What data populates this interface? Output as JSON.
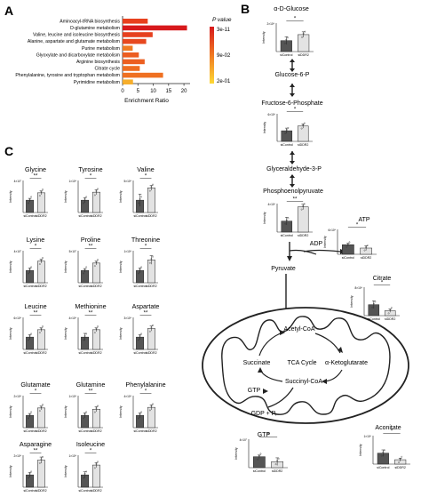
{
  "panels": {
    "A": "A",
    "B": "B",
    "C": "C"
  },
  "panel_a": {
    "legend_title": "P value",
    "legend_ticks": [
      "3e-11",
      "9e-02",
      "2e-01"
    ],
    "xlabel": "Enrichment Ratio",
    "x_ticks": [
      "0",
      "5",
      "10",
      "15",
      "20"
    ]
  },
  "pathway_nodes": {
    "glucose": "α-D-Glucose",
    "g6p": "Glucose-6-P",
    "f6p": "Fructose-6-Phosphate",
    "g3p": "Glyceraldehyde-3-P",
    "pep": "Phosphoenolpyruvate",
    "pyruvate": "Pyruvate",
    "atp": "ATP",
    "adp": "ADP",
    "acetyl": "Acetyl-CoA",
    "tca": "TCA Cycle",
    "akg": "α-Ketoglutarate",
    "succinate": "Succinate",
    "succcoa": "Succinyl-CoA",
    "gtp_in": "GTP",
    "gdp": "GDP + Pᵢ",
    "citrate": "Citrate",
    "gtp": "GTP",
    "aconitate": "Aconitate"
  },
  "mini_common": {
    "ylabel": "Intensity",
    "group1": "siControl",
    "group2": "siDDR2"
  },
  "chart_data": [
    {
      "type": "bar",
      "orientation": "horizontal",
      "xlabel": "Enrichment Ratio",
      "xlim": [
        0,
        22
      ],
      "categories": [
        "Aminoacyl-tRNA biosynthesis",
        "D-glutamine metabolism",
        "Valine, leucine and isoleucine biosynthesis",
        "Alanine, aspartate and glutamate metabolism",
        "Purine metabolism",
        "Glyoxylate and dicarboxylate metabolism",
        "Arginine biosynthesis",
        "Citrate cycle",
        "Phenylalanine, tyrosine and tryptophan metabolism",
        "Pyrimidine metabolism"
      ],
      "values": [
        8.2,
        21.0,
        9.8,
        7.7,
        3.3,
        5.3,
        7.2,
        5.6,
        13.2,
        3.4
      ],
      "colors": [
        "#e8401e",
        "#d7191c",
        "#e6401f",
        "#e7481f",
        "#f07a22",
        "#ec5d20",
        "#ec5f20",
        "#ee6d21",
        "#ef7021",
        "#f6ae2c"
      ]
    },
    {
      "type": "bar",
      "panel": "B",
      "title": "",
      "charts": [
        {
          "key": "glucose",
          "values": [
            1.0,
            1.55
          ],
          "errors": [
            0.35,
            0.25
          ],
          "sig": "*",
          "ytick": "2×10⁸"
        },
        {
          "key": "f6p",
          "values": [
            1.0,
            1.45
          ],
          "errors": [
            0.25,
            0.2
          ],
          "sig": "*",
          "ytick": "6×10⁶"
        },
        {
          "key": "pep",
          "values": [
            1.0,
            2.3
          ],
          "errors": [
            0.35,
            0.25
          ],
          "sig": "**",
          "ytick": "4×10⁶"
        },
        {
          "key": "atp",
          "values": [
            1.0,
            0.65
          ],
          "errors": [
            0.15,
            0.25
          ],
          "sig": "*",
          "ytick": "6×10⁸"
        },
        {
          "key": "citrate",
          "values": [
            1.0,
            0.45
          ],
          "errors": [
            0.35,
            0.15
          ],
          "sig": "*",
          "ytick": "8×10⁶"
        },
        {
          "key": "gtp",
          "values": [
            1.0,
            0.55
          ],
          "errors": [
            0.15,
            0.35
          ],
          "sig": "*",
          "ytick": "4×10⁷"
        },
        {
          "key": "aconitate",
          "values": [
            1.0,
            0.4
          ],
          "errors": [
            0.3,
            0.15
          ],
          "sig": "*",
          "ytick": "1×10⁶"
        }
      ]
    },
    {
      "type": "bar",
      "panel": "C",
      "charts": [
        {
          "title": "Glycine",
          "values": [
            1.0,
            1.6
          ],
          "errors": [
            0.15,
            0.15
          ],
          "sig": "**",
          "ytick": "4×10⁷"
        },
        {
          "title": "Tyrosine",
          "values": [
            1.0,
            1.65
          ],
          "errors": [
            0.2,
            0.2
          ],
          "sig": "*",
          "ytick": "1×10⁸"
        },
        {
          "title": "Valine",
          "values": [
            1.0,
            2.0
          ],
          "errors": [
            0.5,
            0.2
          ],
          "sig": "*",
          "ytick": "5×10⁸"
        },
        {
          "title": "Lysine",
          "values": [
            1.0,
            1.75
          ],
          "errors": [
            0.2,
            0.15
          ],
          "sig": "*",
          "ytick": "4×10⁷"
        },
        {
          "title": "Proline",
          "values": [
            1.0,
            1.6
          ],
          "errors": [
            0.15,
            0.15
          ],
          "sig": "**",
          "ytick": "5×10⁷"
        },
        {
          "title": "Threonine",
          "values": [
            1.0,
            1.85
          ],
          "errors": [
            0.2,
            0.35
          ],
          "sig": "*",
          "ytick": "1×10⁸"
        },
        {
          "title": "Leucine",
          "values": [
            1.0,
            1.6
          ],
          "errors": [
            0.2,
            0.15
          ],
          "sig": "**",
          "ytick": "6×10⁸"
        },
        {
          "title": "Methionine",
          "values": [
            1.0,
            1.6
          ],
          "errors": [
            0.3,
            0.15
          ],
          "sig": "**",
          "ytick": "4×10⁸"
        },
        {
          "title": "Aspartate",
          "values": [
            1.0,
            1.7
          ],
          "errors": [
            0.2,
            0.2
          ],
          "sig": "**",
          "ytick": "3×10⁸"
        },
        {
          "title": "Glutamate",
          "values": [
            1.0,
            1.6
          ],
          "errors": [
            0.15,
            0.15
          ],
          "sig": "*",
          "ytick": "2×10⁸"
        },
        {
          "title": "Glutamine",
          "values": [
            1.0,
            1.5
          ],
          "errors": [
            0.2,
            0.2
          ],
          "sig": "**",
          "ytick": "1×10⁸"
        },
        {
          "title": "Phenylalanine",
          "values": [
            1.0,
            1.65
          ],
          "errors": [
            0.2,
            0.2
          ],
          "sig": "*",
          "ytick": "4×10⁸"
        },
        {
          "title": "Asparagine",
          "values": [
            1.0,
            2.2
          ],
          "errors": [
            0.2,
            0.25
          ],
          "sig": "**",
          "ytick": "2×10⁸"
        },
        {
          "title": "Isoleucine",
          "values": [
            1.0,
            1.8
          ],
          "errors": [
            0.25,
            0.2
          ],
          "sig": "*",
          "ytick": "1×10⁸"
        }
      ]
    }
  ],
  "colors": {
    "dark_bar": "#555555",
    "light_bar": "#e3e3e3",
    "axis": "#222222"
  }
}
